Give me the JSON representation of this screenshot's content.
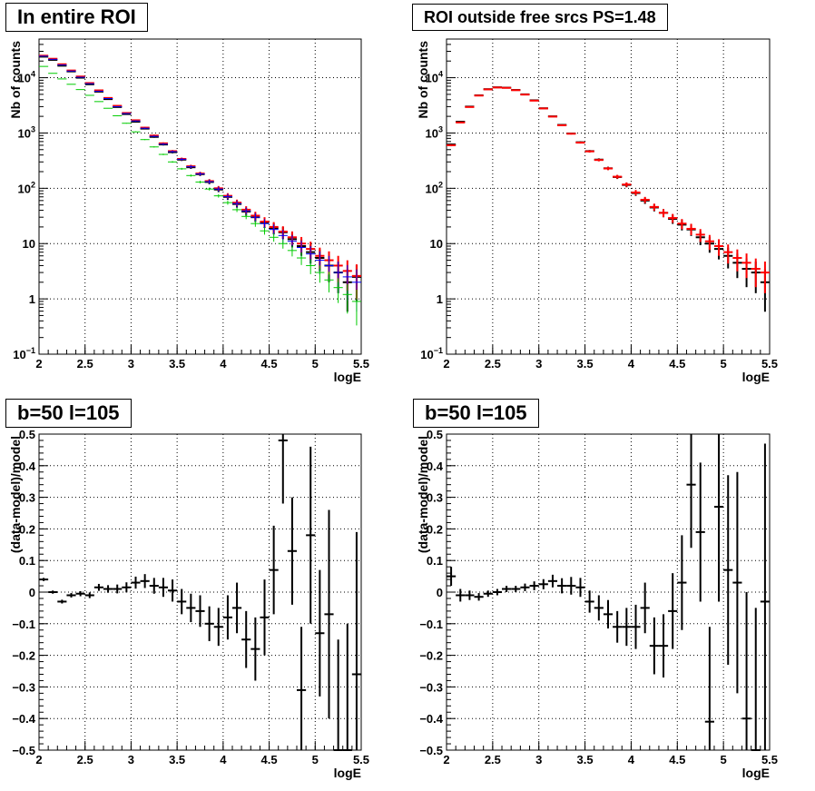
{
  "panels": [
    {
      "title": "In entire ROI"
    },
    {
      "title": "ROI outside free srcs PS=1.48"
    },
    {
      "title": "b=50 l=105"
    },
    {
      "title": "b=50 l=105"
    }
  ],
  "chart_data": [
    {
      "type": "scatter",
      "title": "In entire ROI",
      "xlabel": "logE",
      "ylabel": "Nb of counts",
      "xlim": [
        2,
        5.5
      ],
      "ylim": [
        0.1,
        50000
      ],
      "log_y": true,
      "grid": true,
      "xticks": [
        "2",
        "2.5",
        "3",
        "3.5",
        "4",
        "4.5",
        "5",
        "5.5"
      ],
      "yticks": [
        "10^-1",
        "1",
        "10",
        "10^2",
        "10^3",
        "10^4"
      ],
      "x": [
        2.05,
        2.15,
        2.25,
        2.35,
        2.45,
        2.55,
        2.65,
        2.75,
        2.85,
        2.95,
        3.05,
        3.15,
        3.25,
        3.35,
        3.45,
        3.55,
        3.65,
        3.75,
        3.85,
        3.95,
        4.05,
        4.15,
        4.25,
        4.35,
        4.45,
        4.55,
        4.65,
        4.75,
        4.85,
        4.95,
        5.05,
        5.15,
        5.25,
        5.35,
        5.45
      ],
      "series": [
        {
          "color": "#000000",
          "values": [
            24000,
            21000,
            16500,
            13000,
            10000,
            7600,
            5600,
            4100,
            2950,
            2200,
            1600,
            1200,
            850,
            620,
            450,
            330,
            240,
            180,
            130,
            95,
            70,
            52,
            38,
            30,
            24,
            19,
            16,
            12,
            9,
            7,
            5.5,
            4,
            3,
            2,
            2.5
          ]
        },
        {
          "color": "#ff0000",
          "values": [
            25000,
            22000,
            17500,
            13500,
            10500,
            8000,
            5900,
            4300,
            3100,
            2300,
            1700,
            1250,
            900,
            650,
            470,
            340,
            250,
            185,
            135,
            100,
            73,
            55,
            41,
            32,
            25,
            20,
            16.5,
            13,
            10,
            8,
            6,
            5,
            4,
            3.2,
            2.6
          ]
        },
        {
          "color": "#0000ff",
          "values": [
            24500,
            21500,
            17000,
            13200,
            10200,
            7800,
            5700,
            4200,
            3000,
            2250,
            1650,
            1220,
            870,
            630,
            460,
            335,
            245,
            182,
            132,
            97,
            71,
            53,
            39,
            30,
            23,
            18,
            14,
            11,
            8.5,
            6.5,
            5,
            4,
            3,
            2.5,
            2
          ]
        },
        {
          "color": "#00cc00",
          "values": [
            16000,
            12000,
            9500,
            7600,
            6100,
            4800,
            3700,
            2800,
            2050,
            1500,
            1050,
            760,
            560,
            410,
            300,
            225,
            170,
            130,
            97,
            73,
            55,
            41,
            31,
            23,
            17,
            13,
            10,
            7.5,
            5.5,
            4,
            3,
            2.2,
            1.6,
            1.2,
            0.9
          ]
        }
      ]
    },
    {
      "type": "scatter",
      "title": "ROI outside free srcs PS=1.48",
      "xlabel": "logE",
      "ylabel": "Nb of counts",
      "xlim": [
        2,
        5.5
      ],
      "ylim": [
        0.1,
        50000
      ],
      "log_y": true,
      "grid": true,
      "xticks": [
        "2",
        "2.5",
        "3",
        "3.5",
        "4",
        "4.5",
        "5",
        "5.5"
      ],
      "yticks": [
        "10^-1",
        "1",
        "10",
        "10^2",
        "10^3",
        "10^4"
      ],
      "x": [
        2.05,
        2.15,
        2.25,
        2.35,
        2.45,
        2.55,
        2.65,
        2.75,
        2.85,
        2.95,
        3.05,
        3.15,
        3.25,
        3.35,
        3.45,
        3.55,
        3.65,
        3.75,
        3.85,
        3.95,
        4.05,
        4.15,
        4.25,
        4.35,
        4.45,
        4.55,
        4.65,
        4.75,
        4.85,
        4.95,
        5.05,
        5.15,
        5.25,
        5.35,
        5.45
      ],
      "series": [
        {
          "color": "#000000",
          "values": [
            620,
            1600,
            3000,
            4800,
            6200,
            6700,
            6600,
            6000,
            5000,
            3900,
            2800,
            2000,
            1400,
            980,
            680,
            470,
            330,
            230,
            160,
            115,
            82,
            60,
            45,
            36,
            28,
            22,
            18,
            13,
            10,
            8,
            6,
            4.5,
            3.5,
            3,
            2
          ]
        },
        {
          "color": "#ff0000",
          "values": [
            600,
            1550,
            2950,
            4750,
            6150,
            6650,
            6550,
            5950,
            4950,
            3850,
            2780,
            1980,
            1380,
            970,
            670,
            465,
            325,
            228,
            162,
            117,
            84,
            62,
            46,
            36,
            29,
            23,
            18.5,
            14.5,
            11,
            9,
            7,
            5.5,
            4.5,
            3.5,
            3
          ]
        }
      ]
    },
    {
      "type": "scatter",
      "title": "b=50 l=105",
      "xlabel": "logE",
      "ylabel": "(data-model)/model",
      "xlim": [
        2,
        5.5
      ],
      "ylim": [
        -0.5,
        0.5
      ],
      "log_y": false,
      "grid": true,
      "xticks": [
        "2",
        "2.5",
        "3",
        "3.5",
        "4",
        "4.5",
        "5",
        "5.5"
      ],
      "yticks": [
        "-0.5",
        "-0.4",
        "-0.3",
        "-0.2",
        "-0.1",
        "0",
        "0.1",
        "0.2",
        "0.3",
        "0.4",
        "0.5"
      ],
      "x": [
        2.05,
        2.15,
        2.25,
        2.35,
        2.45,
        2.55,
        2.65,
        2.75,
        2.85,
        2.95,
        3.05,
        3.15,
        3.25,
        3.35,
        3.45,
        3.55,
        3.65,
        3.75,
        3.85,
        3.95,
        4.05,
        4.15,
        4.25,
        4.35,
        4.45,
        4.55,
        4.65,
        4.75,
        4.85,
        4.95,
        5.05,
        5.15,
        5.25,
        5.35,
        5.45
      ],
      "series": [
        {
          "color": "#000000",
          "values": [
            0.04,
            0.0,
            -0.03,
            -0.01,
            -0.005,
            -0.01,
            0.015,
            0.01,
            0.01,
            0.015,
            0.03,
            0.035,
            0.02,
            0.015,
            0.005,
            -0.03,
            -0.05,
            -0.06,
            -0.1,
            -0.11,
            -0.08,
            -0.05,
            -0.15,
            -0.18,
            -0.08,
            0.07,
            0.48,
            0.13,
            -0.31,
            0.18,
            -0.13,
            -0.07,
            -0.5,
            -0.5,
            -0.26
          ],
          "errors": [
            0.005,
            0.005,
            0.006,
            0.007,
            0.008,
            0.009,
            0.011,
            0.012,
            0.014,
            0.016,
            0.019,
            0.022,
            0.025,
            0.03,
            0.035,
            0.04,
            0.045,
            0.05,
            0.055,
            0.06,
            0.07,
            0.08,
            0.09,
            0.1,
            0.12,
            0.14,
            0.2,
            0.17,
            0.2,
            0.28,
            0.2,
            0.33,
            0.35,
            0.4,
            0.45
          ]
        }
      ]
    },
    {
      "type": "scatter",
      "title": "b=50 l=105",
      "xlabel": "logE",
      "ylabel": "(data-model)/model",
      "xlim": [
        2,
        5.5
      ],
      "ylim": [
        -0.5,
        0.5
      ],
      "log_y": false,
      "grid": true,
      "xticks": [
        "2",
        "2.5",
        "3",
        "3.5",
        "4",
        "4.5",
        "5",
        "5.5"
      ],
      "yticks": [
        "-0.5",
        "-0.4",
        "-0.3",
        "-0.2",
        "-0.1",
        "0",
        "0.1",
        "0.2",
        "0.3",
        "0.4",
        "0.5"
      ],
      "x": [
        2.05,
        2.15,
        2.25,
        2.35,
        2.45,
        2.55,
        2.65,
        2.75,
        2.85,
        2.95,
        3.05,
        3.15,
        3.25,
        3.35,
        3.45,
        3.55,
        3.65,
        3.75,
        3.85,
        3.95,
        4.05,
        4.15,
        4.25,
        4.35,
        4.45,
        4.55,
        4.65,
        4.75,
        4.85,
        4.95,
        5.05,
        5.15,
        5.25,
        5.35,
        5.45
      ],
      "series": [
        {
          "color": "#000000",
          "values": [
            0.05,
            -0.01,
            -0.01,
            -0.015,
            -0.005,
            0.0,
            0.01,
            0.01,
            0.015,
            0.02,
            0.025,
            0.035,
            0.02,
            0.02,
            0.015,
            -0.03,
            -0.05,
            -0.07,
            -0.11,
            -0.11,
            -0.11,
            -0.05,
            -0.17,
            -0.17,
            -0.06,
            0.03,
            0.34,
            0.19,
            -0.41,
            0.27,
            0.07,
            0.03,
            -0.4,
            -0.5,
            -0.03
          ],
          "errors": [
            0.03,
            0.02,
            0.015,
            0.012,
            0.01,
            0.01,
            0.01,
            0.01,
            0.012,
            0.014,
            0.016,
            0.02,
            0.024,
            0.028,
            0.03,
            0.035,
            0.04,
            0.045,
            0.05,
            0.06,
            0.07,
            0.08,
            0.09,
            0.1,
            0.12,
            0.15,
            0.2,
            0.22,
            0.3,
            0.3,
            0.3,
            0.35,
            0.4,
            0.45,
            0.5
          ]
        }
      ]
    }
  ]
}
